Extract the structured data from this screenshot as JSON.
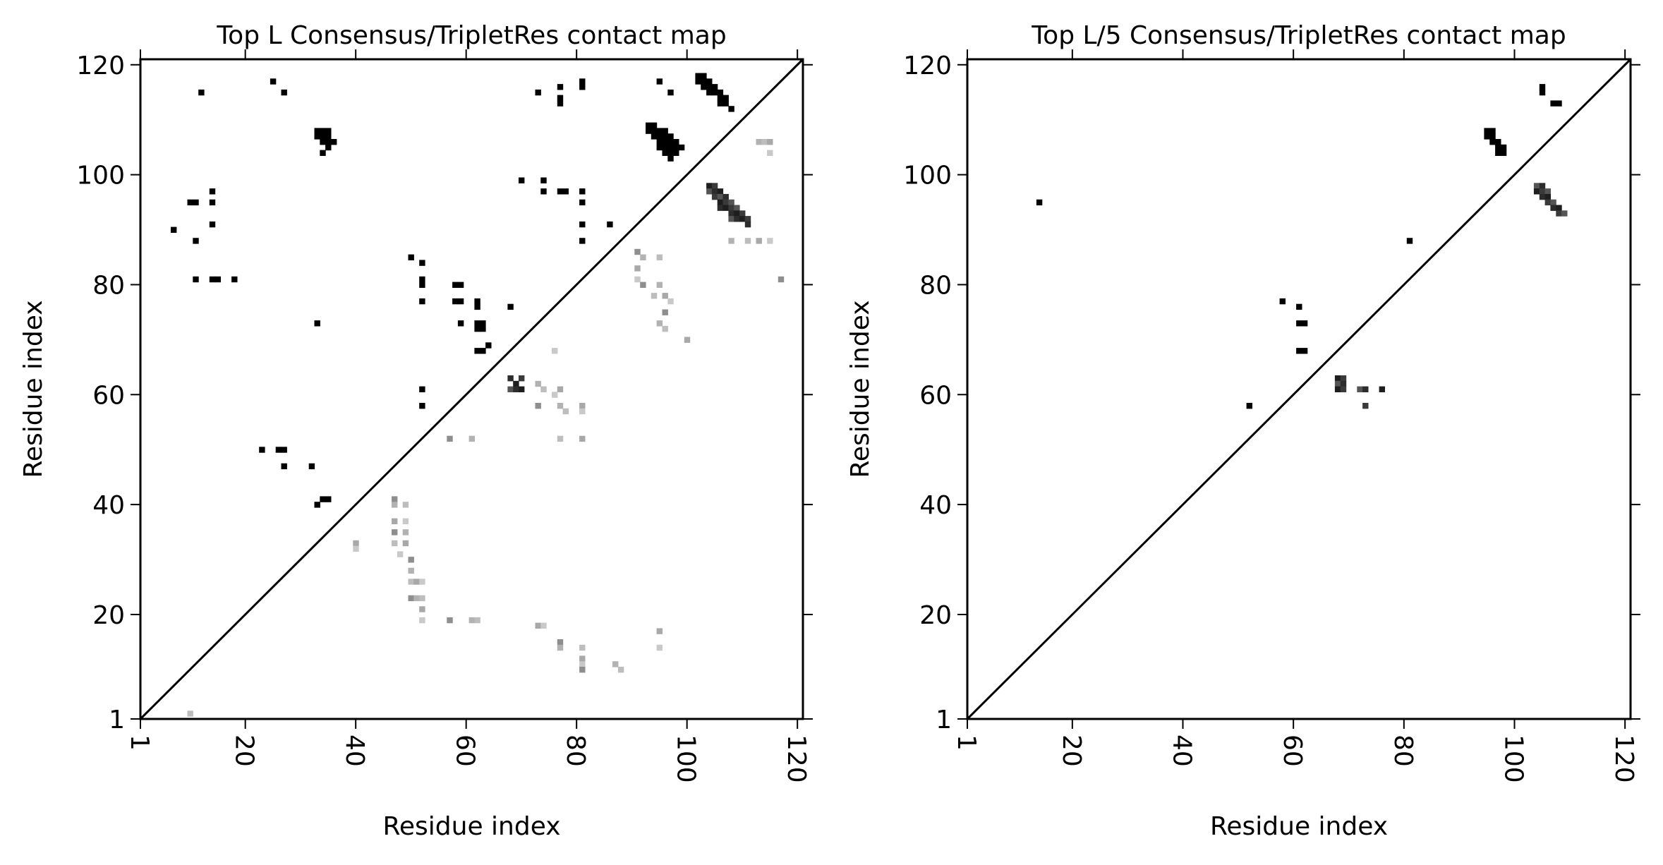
{
  "chart_data": [
    {
      "type": "heatmap",
      "title": "Top L Consensus/TripletRes contact map",
      "xlabel": "Residue index",
      "ylabel": "Residue index",
      "xlim": [
        1,
        121
      ],
      "ylim": [
        1,
        121
      ],
      "xticks": [
        1,
        20,
        40,
        60,
        80,
        100,
        120
      ],
      "yticks": [
        1,
        20,
        40,
        60,
        80,
        100,
        120
      ],
      "diagonal": true,
      "grid": false,
      "colormap": "Greys",
      "upper_triangle_predicted_contacts": [
        [
          12,
          115
        ],
        [
          25,
          117
        ],
        [
          27,
          115
        ],
        [
          33,
          108
        ],
        [
          34,
          108
        ],
        [
          35,
          108
        ],
        [
          33,
          107
        ],
        [
          34,
          107
        ],
        [
          35,
          107
        ],
        [
          34,
          106
        ],
        [
          35,
          106
        ],
        [
          36,
          106
        ],
        [
          35,
          105
        ],
        [
          34,
          104
        ],
        [
          73,
          115
        ],
        [
          77,
          116
        ],
        [
          81,
          117
        ],
        [
          81,
          116
        ],
        [
          77,
          113
        ],
        [
          77,
          114
        ],
        [
          95,
          117
        ],
        [
          97,
          115
        ],
        [
          102,
          118
        ],
        [
          103,
          118
        ],
        [
          102,
          117
        ],
        [
          103,
          117
        ],
        [
          104,
          117
        ],
        [
          103,
          116
        ],
        [
          104,
          116
        ],
        [
          105,
          116
        ],
        [
          104,
          115
        ],
        [
          105,
          115
        ],
        [
          106,
          115
        ],
        [
          106,
          114
        ],
        [
          107,
          114
        ],
        [
          106,
          113
        ],
        [
          107,
          113
        ],
        [
          108,
          112
        ],
        [
          93,
          109
        ],
        [
          94,
          109
        ],
        [
          93,
          108
        ],
        [
          94,
          108
        ],
        [
          95,
          108
        ],
        [
          96,
          108
        ],
        [
          94,
          107
        ],
        [
          95,
          107
        ],
        [
          96,
          107
        ],
        [
          97,
          107
        ],
        [
          95,
          106
        ],
        [
          96,
          106
        ],
        [
          97,
          106
        ],
        [
          98,
          106
        ],
        [
          95,
          105
        ],
        [
          96,
          105
        ],
        [
          97,
          105
        ],
        [
          98,
          105
        ],
        [
          99,
          105
        ],
        [
          96,
          104
        ],
        [
          97,
          104
        ],
        [
          98,
          104
        ],
        [
          97,
          103
        ],
        [
          10,
          95
        ],
        [
          11,
          95
        ],
        [
          14,
          97
        ],
        [
          14,
          95
        ],
        [
          14,
          91
        ],
        [
          7,
          90
        ],
        [
          11,
          88
        ],
        [
          11,
          81
        ],
        [
          14,
          81
        ],
        [
          15,
          81
        ],
        [
          18,
          81
        ],
        [
          70,
          99
        ],
        [
          74,
          99
        ],
        [
          74,
          97
        ],
        [
          77,
          97
        ],
        [
          78,
          97
        ],
        [
          81,
          97
        ],
        [
          81,
          95
        ],
        [
          81,
          91
        ],
        [
          86,
          91
        ],
        [
          81,
          88
        ],
        [
          50,
          85
        ],
        [
          52,
          84
        ],
        [
          52,
          81
        ],
        [
          52,
          80
        ],
        [
          52,
          77
        ],
        [
          58,
          80
        ],
        [
          59,
          80
        ],
        [
          58,
          77
        ],
        [
          59,
          77
        ],
        [
          62,
          77
        ],
        [
          62,
          76
        ],
        [
          68,
          76
        ],
        [
          59,
          73
        ],
        [
          62,
          73
        ],
        [
          63,
          73
        ],
        [
          62,
          72
        ],
        [
          63,
          72
        ],
        [
          64,
          69
        ],
        [
          62,
          68
        ],
        [
          63,
          68
        ],
        [
          33,
          73
        ],
        [
          52,
          61
        ],
        [
          52,
          58
        ],
        [
          23,
          50
        ],
        [
          26,
          50
        ],
        [
          27,
          50
        ],
        [
          27,
          47
        ],
        [
          32,
          47
        ],
        [
          33,
          40
        ],
        [
          34,
          41
        ],
        [
          35,
          41
        ]
      ],
      "lower_triangle_true_contacts": [
        [
          10,
          2
        ],
        [
          40,
          33
        ],
        [
          40,
          32
        ],
        [
          47,
          41
        ],
        [
          47,
          40
        ],
        [
          49,
          40
        ],
        [
          47,
          37
        ],
        [
          49,
          37
        ],
        [
          47,
          35
        ],
        [
          49,
          35
        ],
        [
          47,
          33
        ],
        [
          49,
          33
        ],
        [
          48,
          31
        ],
        [
          50,
          30
        ],
        [
          50,
          28
        ],
        [
          50,
          26
        ],
        [
          51,
          26
        ],
        [
          52,
          26
        ],
        [
          50,
          23
        ],
        [
          51,
          23
        ],
        [
          52,
          23
        ],
        [
          52,
          21
        ],
        [
          52,
          19
        ],
        [
          57,
          19
        ],
        [
          61,
          19
        ],
        [
          62,
          19
        ],
        [
          73,
          18
        ],
        [
          74,
          18
        ],
        [
          77,
          15
        ],
        [
          77,
          14
        ],
        [
          81,
          14
        ],
        [
          81,
          12
        ],
        [
          81,
          11
        ],
        [
          81,
          10
        ],
        [
          87,
          11
        ],
        [
          88,
          10
        ],
        [
          95,
          17
        ],
        [
          95,
          14
        ],
        [
          57,
          52
        ],
        [
          61,
          52
        ],
        [
          77,
          52
        ],
        [
          81,
          52
        ],
        [
          76,
          68
        ],
        [
          68,
          63
        ],
        [
          69,
          62
        ],
        [
          70,
          63
        ],
        [
          68,
          61
        ],
        [
          69,
          61
        ],
        [
          70,
          61
        ],
        [
          73,
          62
        ],
        [
          74,
          61
        ],
        [
          77,
          61
        ],
        [
          76,
          60
        ],
        [
          73,
          58
        ],
        [
          77,
          58
        ],
        [
          78,
          57
        ],
        [
          81,
          58
        ],
        [
          81,
          57
        ],
        [
          91,
          86
        ],
        [
          92,
          85
        ],
        [
          95,
          85
        ],
        [
          91,
          83
        ],
        [
          91,
          81
        ],
        [
          92,
          80
        ],
        [
          95,
          80
        ],
        [
          94,
          78
        ],
        [
          96,
          78
        ],
        [
          97,
          77
        ],
        [
          96,
          75
        ],
        [
          95,
          73
        ],
        [
          96,
          72
        ],
        [
          100,
          70
        ],
        [
          104,
          98
        ],
        [
          105,
          98
        ],
        [
          104,
          97
        ],
        [
          105,
          97
        ],
        [
          106,
          97
        ],
        [
          105,
          96
        ],
        [
          106,
          96
        ],
        [
          107,
          96
        ],
        [
          106,
          95
        ],
        [
          107,
          95
        ],
        [
          108,
          95
        ],
        [
          106,
          94
        ],
        [
          107,
          94
        ],
        [
          108,
          94
        ],
        [
          109,
          94
        ],
        [
          108,
          93
        ],
        [
          109,
          93
        ],
        [
          110,
          93
        ],
        [
          108,
          92
        ],
        [
          109,
          92
        ],
        [
          110,
          92
        ],
        [
          111,
          92
        ],
        [
          108,
          88
        ],
        [
          111,
          88
        ],
        [
          113,
          88
        ],
        [
          115,
          88
        ],
        [
          117,
          81
        ],
        [
          113,
          106
        ],
        [
          114,
          106
        ],
        [
          115,
          106
        ],
        [
          115,
          104
        ],
        [
          111,
          91
        ]
      ]
    },
    {
      "type": "heatmap",
      "title": "Top L/5 Consensus/TripletRes contact map",
      "xlabel": "Residue index",
      "ylabel": "Residue index",
      "xlim": [
        1,
        121
      ],
      "ylim": [
        1,
        121
      ],
      "xticks": [
        1,
        20,
        40,
        60,
        80,
        100,
        120
      ],
      "yticks": [
        1,
        20,
        40,
        60,
        80,
        100,
        120
      ],
      "diagonal": true,
      "grid": false,
      "colormap": "Greys",
      "upper_triangle_predicted_contacts": [
        [
          14,
          95
        ],
        [
          52,
          58
        ],
        [
          58,
          77
        ],
        [
          61,
          76
        ],
        [
          61,
          73
        ],
        [
          62,
          73
        ],
        [
          61,
          68
        ],
        [
          62,
          68
        ],
        [
          81,
          88
        ],
        [
          95,
          108
        ],
        [
          96,
          108
        ],
        [
          95,
          107
        ],
        [
          96,
          107
        ],
        [
          96,
          106
        ],
        [
          97,
          106
        ],
        [
          97,
          105
        ],
        [
          98,
          105
        ],
        [
          97,
          104
        ],
        [
          98,
          104
        ],
        [
          105,
          116
        ],
        [
          105,
          115
        ],
        [
          107,
          113
        ],
        [
          108,
          113
        ]
      ],
      "lower_triangle_true_contacts": [
        [
          68,
          63
        ],
        [
          69,
          63
        ],
        [
          68,
          62
        ],
        [
          69,
          62
        ],
        [
          68,
          61
        ],
        [
          69,
          61
        ],
        [
          72,
          61
        ],
        [
          73,
          61
        ],
        [
          76,
          61
        ],
        [
          73,
          58
        ],
        [
          104,
          98
        ],
        [
          105,
          98
        ],
        [
          104,
          97
        ],
        [
          105,
          97
        ],
        [
          106,
          97
        ],
        [
          105,
          96
        ],
        [
          106,
          96
        ],
        [
          106,
          95
        ],
        [
          107,
          95
        ],
        [
          107,
          94
        ],
        [
          108,
          94
        ],
        [
          108,
          93
        ],
        [
          109,
          93
        ]
      ]
    }
  ]
}
